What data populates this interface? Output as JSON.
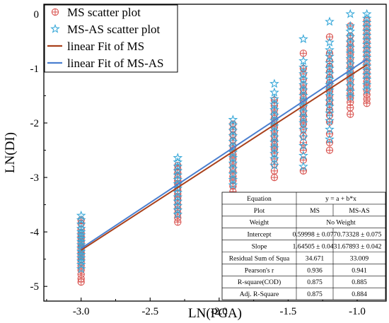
{
  "chart_data": {
    "type": "scatter",
    "xlabel": "LN(PGA)",
    "ylabel": "LN(DI)",
    "xlim": [
      -3.27,
      -0.79
    ],
    "ylim": [
      -5.27,
      0.18
    ],
    "x_ticks": [
      -3.0,
      -2.5,
      -2.0,
      -1.5,
      -1.0
    ],
    "x_tick_labels": [
      "-3.0",
      "-2.5",
      "-2.0",
      "-1.5",
      "-1.0"
    ],
    "y_ticks": [
      -5,
      -4,
      -3,
      -2,
      -1,
      0
    ],
    "y_tick_labels": [
      "-5",
      "-4",
      "-3",
      "-2",
      "-1",
      "0"
    ],
    "grid": false,
    "legend_position": "top-left",
    "series": [
      {
        "name": "MS scatter plot",
        "kind": "scatter",
        "marker": "circle-plus",
        "color": "#d9534f",
        "clusters": [
          {
            "x": -3.0,
            "y": [
              -3.78,
              -3.85,
              -3.95,
              -4.02,
              -4.08,
              -4.12,
              -4.18,
              -4.22,
              -4.26,
              -4.3,
              -4.34,
              -4.38,
              -4.42,
              -4.46,
              -4.5,
              -4.55,
              -4.62,
              -4.7,
              -4.78,
              -4.86,
              -4.92
            ]
          },
          {
            "x": -2.3,
            "y": [
              -2.78,
              -2.85,
              -2.92,
              -3.0,
              -3.06,
              -3.12,
              -3.18,
              -3.24,
              -3.3,
              -3.36,
              -3.42,
              -3.5,
              -3.58,
              -3.66,
              -3.74,
              -3.82
            ]
          },
          {
            "x": -1.9,
            "y": [
              -2.02,
              -2.12,
              -2.22,
              -2.32,
              -2.42,
              -2.5,
              -2.58,
              -2.66,
              -2.74,
              -2.82,
              -2.9,
              -2.98,
              -3.06,
              -3.16,
              -3.26
            ]
          },
          {
            "x": -1.6,
            "y": [
              -1.58,
              -1.68,
              -1.76,
              -1.84,
              -1.92,
              -2.0,
              -2.08,
              -2.16,
              -2.24,
              -2.32,
              -2.4,
              -2.48,
              -2.56,
              -2.66,
              -2.76,
              -2.88,
              -3.0
            ]
          },
          {
            "x": -1.39,
            "y": [
              -0.72,
              -1.0,
              -1.1,
              -1.2,
              -1.3,
              -1.38,
              -1.46,
              -1.54,
              -1.62,
              -1.7,
              -1.78,
              -1.86,
              -1.94,
              -2.02,
              -2.12,
              -2.24,
              -2.36,
              -2.5,
              -2.68,
              -2.88
            ]
          },
          {
            "x": -1.2,
            "y": [
              -0.42,
              -0.72,
              -0.86,
              -0.96,
              -1.06,
              -1.16,
              -1.26,
              -1.34,
              -1.42,
              -1.5,
              -1.58,
              -1.66,
              -1.76,
              -1.86,
              -1.98,
              -2.2,
              -2.36,
              -2.5
            ]
          },
          {
            "x": -1.05,
            "y": [
              -0.22,
              -0.4,
              -0.5,
              -0.58,
              -0.66,
              -0.74,
              -0.82,
              -0.9,
              -0.98,
              -1.06,
              -1.14,
              -1.22,
              -1.3,
              -1.38,
              -1.46,
              -1.54,
              -1.62,
              -1.72,
              -1.84
            ]
          },
          {
            "x": -0.93,
            "y": [
              -0.12,
              -0.2,
              -0.28,
              -0.36,
              -0.44,
              -0.52,
              -0.6,
              -0.68,
              -0.76,
              -0.84,
              -0.92,
              -1.0,
              -1.08,
              -1.16,
              -1.24,
              -1.32,
              -1.4,
              -1.48,
              -1.56,
              -1.64
            ]
          }
        ]
      },
      {
        "name": "MS-AS scatter plot",
        "kind": "scatter",
        "marker": "star",
        "color": "#3aa9d9",
        "clusters": [
          {
            "x": -3.0,
            "y": [
              -3.7,
              -3.78,
              -3.86,
              -3.94,
              -4.0,
              -4.06,
              -4.12,
              -4.18,
              -4.24,
              -4.3,
              -4.36,
              -4.42,
              -4.48,
              -4.54,
              -4.6,
              -4.68
            ]
          },
          {
            "x": -2.3,
            "y": [
              -2.64,
              -2.72,
              -2.8,
              -2.88,
              -2.96,
              -3.04,
              -3.12,
              -3.2,
              -3.28,
              -3.36,
              -3.44,
              -3.52,
              -3.6,
              -3.68
            ]
          },
          {
            "x": -1.9,
            "y": [
              -1.94,
              -2.04,
              -2.14,
              -2.24,
              -2.34,
              -2.44,
              -2.54,
              -2.64,
              -2.74,
              -2.84,
              -2.94,
              -3.04,
              -3.14
            ]
          },
          {
            "x": -1.6,
            "y": [
              -1.28,
              -1.44,
              -1.56,
              -1.66,
              -1.76,
              -1.86,
              -1.96,
              -2.06,
              -2.16,
              -2.26,
              -2.36,
              -2.46,
              -2.56,
              -2.66,
              -2.78
            ]
          },
          {
            "x": -1.39,
            "y": [
              -0.46,
              -0.86,
              -0.98,
              -1.1,
              -1.2,
              -1.3,
              -1.4,
              -1.5,
              -1.6,
              -1.7,
              -1.8,
              -1.9,
              -2.0,
              -2.12,
              -2.26,
              -2.42,
              -2.6,
              -2.8
            ]
          },
          {
            "x": -1.2,
            "y": [
              -0.14,
              -0.52,
              -0.66,
              -0.78,
              -0.9,
              -1.0,
              -1.1,
              -1.2,
              -1.3,
              -1.4,
              -1.5,
              -1.6,
              -1.7,
              -1.82,
              -1.96,
              -2.12,
              -2.3
            ]
          },
          {
            "x": -1.05,
            "y": [
              0.0,
              -0.22,
              -0.32,
              -0.42,
              -0.52,
              -0.62,
              -0.72,
              -0.82,
              -0.92,
              -1.02,
              -1.12,
              -1.22,
              -1.32,
              -1.42,
              -1.52
            ]
          },
          {
            "x": -0.93,
            "y": [
              0.0,
              -0.08,
              -0.16,
              -0.24,
              -0.32,
              -0.4,
              -0.48,
              -0.56,
              -0.64,
              -0.72,
              -0.8,
              -0.88,
              -0.96,
              -1.04,
              -1.12,
              -1.2,
              -1.3,
              -1.4
            ]
          }
        ]
      },
      {
        "name": "linear Fit of MS",
        "kind": "line",
        "color": "#a9411c",
        "x": [
          -3.0,
          -0.93
        ],
        "y": [
          -4.335,
          -0.93
        ]
      },
      {
        "name": "linear Fit of MS-AS",
        "kind": "line",
        "color": "#4a7fd0",
        "x": [
          -3.0,
          -0.93
        ],
        "y": [
          -4.303,
          -0.828
        ]
      }
    ],
    "stats_table": {
      "rows": [
        {
          "label": "Equation",
          "cells": [
            "y = a + b*x"
          ]
        },
        {
          "label": "Plot",
          "cells": [
            "MS",
            "MS-AS"
          ]
        },
        {
          "label": "Weight",
          "cells": [
            "No Weight"
          ]
        },
        {
          "label": "Intercept",
          "cells": [
            "0.59998 ± 0.077",
            "0.73328 ± 0.075"
          ]
        },
        {
          "label": "Slope",
          "cells": [
            "1.64505 ± 0.043",
            "1.67893 ± 0.042"
          ]
        },
        {
          "label": "Residual Sum of Squa",
          "cells": [
            "34.671",
            "33.009"
          ]
        },
        {
          "label": "Pearson's r",
          "cells": [
            "0.936",
            "0.941"
          ]
        },
        {
          "label": "R-square(COD)",
          "cells": [
            "0.875",
            "0.885"
          ]
        },
        {
          "label": "Adj. R-Square",
          "cells": [
            "0.875",
            "0.884"
          ]
        }
      ]
    }
  }
}
